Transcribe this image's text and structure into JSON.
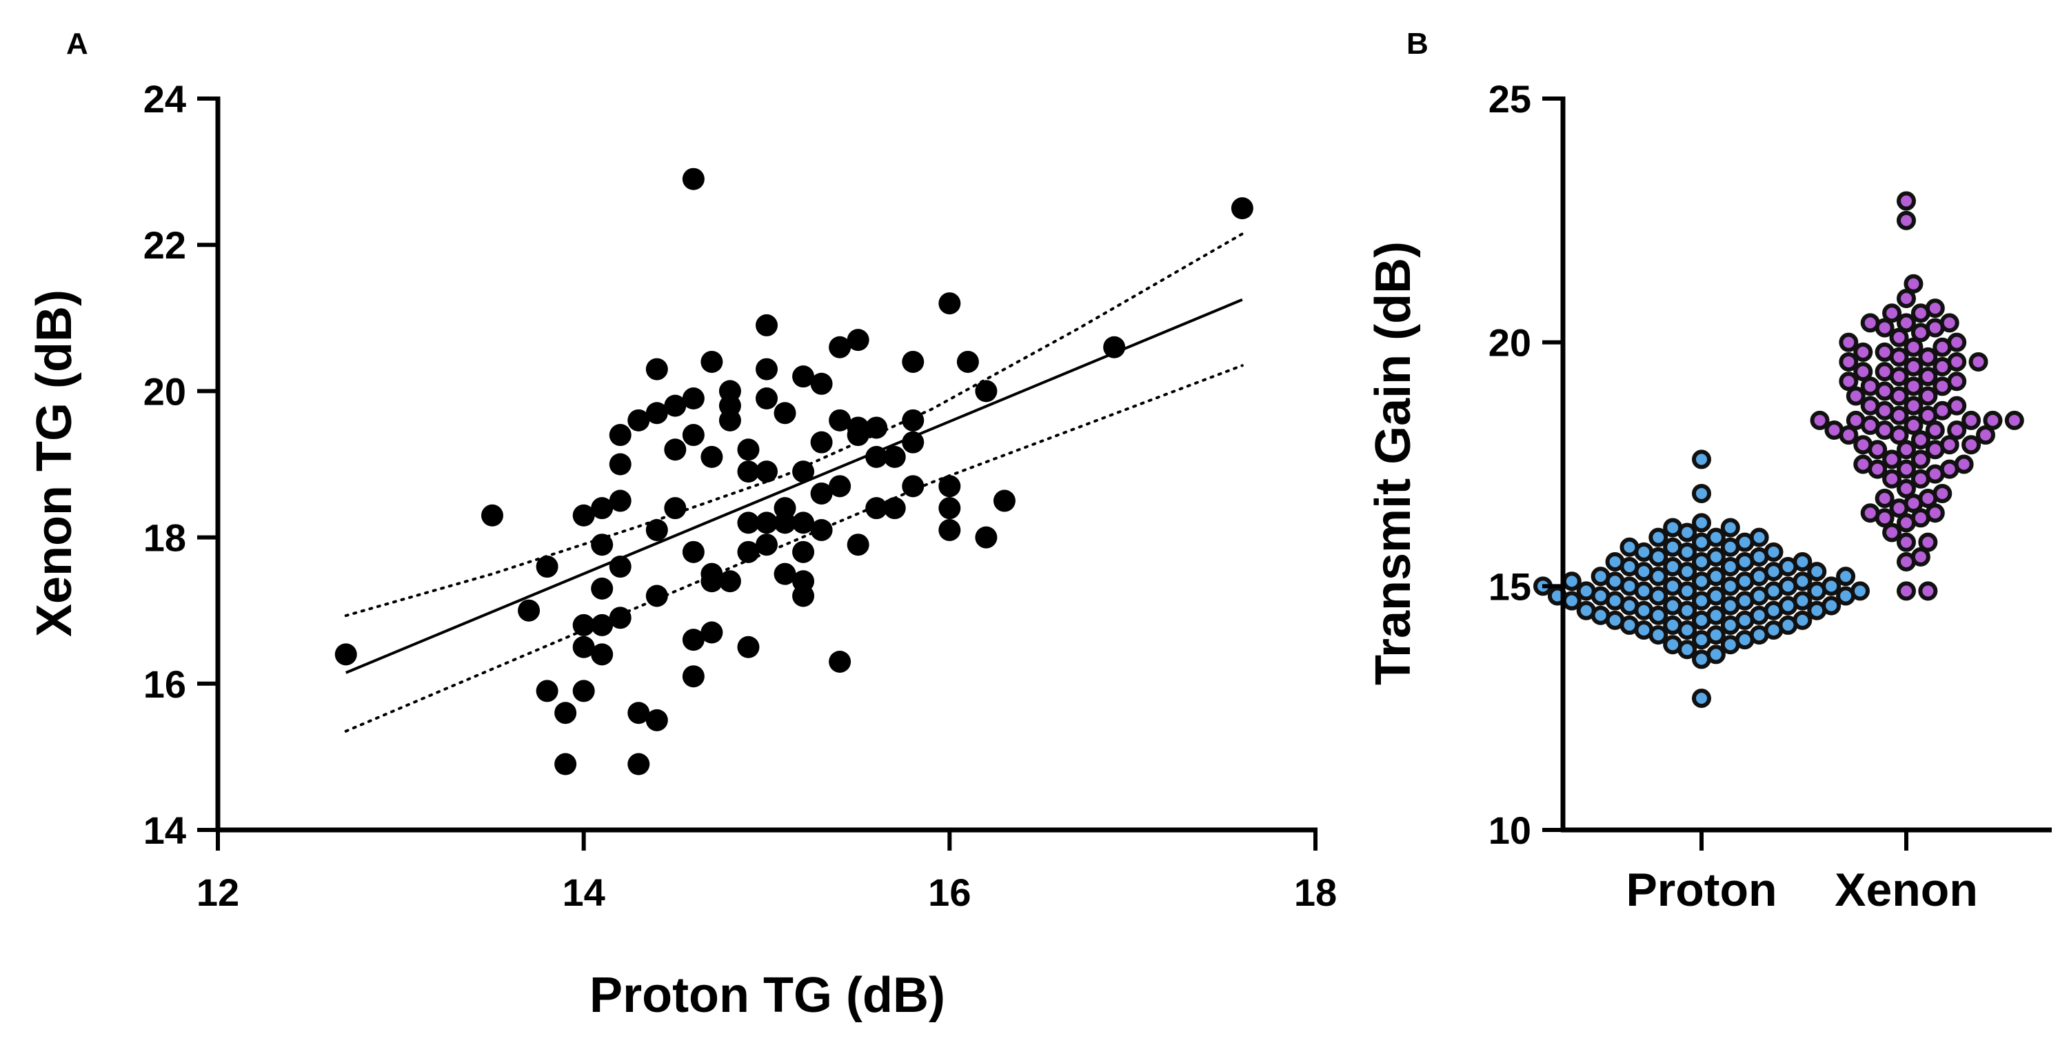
{
  "panels": {
    "a_label": "A",
    "b_label": "B"
  },
  "colors": {
    "axis": "#000000",
    "scatter_point": "#000000",
    "proton_fill": "#5aa7e6",
    "xenon_fill": "#b55ed6",
    "point_edge": "#111111"
  },
  "chart_data": [
    {
      "type": "scatter",
      "panel": "A",
      "title": "",
      "xlabel": "Proton TG (dB)",
      "ylabel": "Xenon TG (dB)",
      "xlim": [
        12,
        18
      ],
      "ylim": [
        14,
        24
      ],
      "xticks": [
        12,
        14,
        16,
        18
      ],
      "yticks": [
        14,
        16,
        18,
        20,
        22,
        24
      ],
      "xtick_labels": [
        "12",
        "14",
        "16",
        "18"
      ],
      "ytick_labels": [
        "14",
        "16",
        "18",
        "20",
        "22",
        "24"
      ],
      "points": [
        [
          12.7,
          16.4
        ],
        [
          13.5,
          18.3
        ],
        [
          13.7,
          17.0
        ],
        [
          13.8,
          17.6
        ],
        [
          13.8,
          15.9
        ],
        [
          13.9,
          15.6
        ],
        [
          13.9,
          14.9
        ],
        [
          14.0,
          18.3
        ],
        [
          14.0,
          16.8
        ],
        [
          14.0,
          16.5
        ],
        [
          14.0,
          15.9
        ],
        [
          14.1,
          18.4
        ],
        [
          14.1,
          17.9
        ],
        [
          14.1,
          17.3
        ],
        [
          14.1,
          16.8
        ],
        [
          14.1,
          16.4
        ],
        [
          14.2,
          19.4
        ],
        [
          14.2,
          19.0
        ],
        [
          14.2,
          18.5
        ],
        [
          14.2,
          17.6
        ],
        [
          14.2,
          16.9
        ],
        [
          14.3,
          19.6
        ],
        [
          14.3,
          15.6
        ],
        [
          14.3,
          14.9
        ],
        [
          14.4,
          20.3
        ],
        [
          14.4,
          19.7
        ],
        [
          14.4,
          18.1
        ],
        [
          14.4,
          17.2
        ],
        [
          14.4,
          15.5
        ],
        [
          14.5,
          19.8
        ],
        [
          14.5,
          19.2
        ],
        [
          14.5,
          18.4
        ],
        [
          14.6,
          22.9
        ],
        [
          14.6,
          19.9
        ],
        [
          14.6,
          19.4
        ],
        [
          14.6,
          17.8
        ],
        [
          14.6,
          16.6
        ],
        [
          14.6,
          16.1
        ],
        [
          14.7,
          20.4
        ],
        [
          14.7,
          19.1
        ],
        [
          14.7,
          17.5
        ],
        [
          14.7,
          17.4
        ],
        [
          14.7,
          16.7
        ],
        [
          14.8,
          20.0
        ],
        [
          14.8,
          19.8
        ],
        [
          14.8,
          19.6
        ],
        [
          14.8,
          17.4
        ],
        [
          14.9,
          19.2
        ],
        [
          14.9,
          18.9
        ],
        [
          14.9,
          18.2
        ],
        [
          14.9,
          17.8
        ],
        [
          14.9,
          16.5
        ],
        [
          15.0,
          20.9
        ],
        [
          15.0,
          20.3
        ],
        [
          15.0,
          19.9
        ],
        [
          15.0,
          18.9
        ],
        [
          15.0,
          18.2
        ],
        [
          15.0,
          17.9
        ],
        [
          15.1,
          19.7
        ],
        [
          15.1,
          18.4
        ],
        [
          15.1,
          18.2
        ],
        [
          15.1,
          17.5
        ],
        [
          15.2,
          18.9
        ],
        [
          15.2,
          18.2
        ],
        [
          15.2,
          17.8
        ],
        [
          15.2,
          17.4
        ],
        [
          15.2,
          17.2
        ],
        [
          15.2,
          20.2
        ],
        [
          15.3,
          20.1
        ],
        [
          15.3,
          19.3
        ],
        [
          15.3,
          18.6
        ],
        [
          15.3,
          18.1
        ],
        [
          15.4,
          20.6
        ],
        [
          15.4,
          19.6
        ],
        [
          15.4,
          18.7
        ],
        [
          15.4,
          16.3
        ],
        [
          15.5,
          20.7
        ],
        [
          15.5,
          19.5
        ],
        [
          15.5,
          19.4
        ],
        [
          15.5,
          17.9
        ],
        [
          15.6,
          19.5
        ],
        [
          15.6,
          19.1
        ],
        [
          15.6,
          18.4
        ],
        [
          15.7,
          19.1
        ],
        [
          15.7,
          18.4
        ],
        [
          15.8,
          20.4
        ],
        [
          15.8,
          19.6
        ],
        [
          15.8,
          19.3
        ],
        [
          15.8,
          18.7
        ],
        [
          16.0,
          21.2
        ],
        [
          16.0,
          18.7
        ],
        [
          16.0,
          18.4
        ],
        [
          16.0,
          18.1
        ],
        [
          16.1,
          20.4
        ],
        [
          16.2,
          20.0
        ],
        [
          16.2,
          18.0
        ],
        [
          16.3,
          18.5
        ],
        [
          16.9,
          20.6
        ],
        [
          17.6,
          22.5
        ]
      ],
      "regression": {
        "x": [
          12.7,
          17.6
        ],
        "y": [
          16.15,
          21.25
        ]
      },
      "ci_upper": {
        "x": [
          12.7,
          13.5,
          14.3,
          15.1,
          15.9,
          16.7,
          17.6
        ],
        "y": [
          16.93,
          17.5,
          18.15,
          18.85,
          19.75,
          20.85,
          22.15
        ]
      },
      "ci_lower": {
        "x": [
          12.7,
          13.5,
          14.3,
          15.1,
          15.9,
          16.7,
          17.6
        ],
        "y": [
          15.35,
          16.2,
          17.05,
          17.9,
          18.75,
          19.5,
          20.35
        ]
      }
    },
    {
      "type": "scatter",
      "subtype": "beeswarm",
      "panel": "B",
      "title": "",
      "xlabel": "",
      "ylabel": "Transmit Gain (dB)",
      "ylim": [
        10,
        25
      ],
      "yticks": [
        10,
        15,
        20,
        25
      ],
      "ytick_labels": [
        "10",
        "15",
        "20",
        "25"
      ],
      "categories": [
        "Proton",
        "Xenon"
      ],
      "series": [
        {
          "name": "Proton",
          "values": [
            12.7,
            13.5,
            13.6,
            13.7,
            13.8,
            13.8,
            13.9,
            13.9,
            14.0,
            14.0,
            14.0,
            14.1,
            14.1,
            14.1,
            14.2,
            14.2,
            14.2,
            14.2,
            14.3,
            14.3,
            14.3,
            14.3,
            14.4,
            14.4,
            14.4,
            14.4,
            14.5,
            14.5,
            14.5,
            14.5,
            14.5,
            14.6,
            14.6,
            14.6,
            14.6,
            14.6,
            14.7,
            14.7,
            14.7,
            14.7,
            14.7,
            14.8,
            14.8,
            14.8,
            14.8,
            14.8,
            14.8,
            14.9,
            14.9,
            14.9,
            14.9,
            14.9,
            14.9,
            15.0,
            15.0,
            15.0,
            15.0,
            15.0,
            15.0,
            15.1,
            15.1,
            15.1,
            15.1,
            15.1,
            15.2,
            15.2,
            15.2,
            15.2,
            15.2,
            15.3,
            15.3,
            15.3,
            15.3,
            15.4,
            15.4,
            15.4,
            15.4,
            15.5,
            15.5,
            15.5,
            15.5,
            15.6,
            15.6,
            15.6,
            15.7,
            15.7,
            15.7,
            15.8,
            15.8,
            15.8,
            15.9,
            15.9,
            16.0,
            16.0,
            16.0,
            16.1,
            16.2,
            16.2,
            16.3,
            16.9,
            17.6
          ]
        },
        {
          "name": "Xenon",
          "values": [
            14.9,
            14.9,
            15.5,
            15.6,
            15.9,
            15.9,
            16.1,
            16.3,
            16.4,
            16.4,
            16.5,
            16.5,
            16.6,
            16.7,
            16.8,
            16.8,
            16.9,
            17.0,
            17.2,
            17.2,
            17.3,
            17.4,
            17.4,
            17.4,
            17.5,
            17.5,
            17.6,
            17.6,
            17.8,
            17.8,
            17.8,
            17.9,
            17.9,
            17.9,
            18.0,
            18.1,
            18.1,
            18.1,
            18.2,
            18.2,
            18.2,
            18.2,
            18.3,
            18.3,
            18.4,
            18.4,
            18.4,
            18.4,
            18.4,
            18.5,
            18.5,
            18.6,
            18.6,
            18.7,
            18.7,
            18.7,
            18.9,
            18.9,
            18.9,
            19.0,
            19.1,
            19.1,
            19.1,
            19.2,
            19.2,
            19.3,
            19.3,
            19.4,
            19.4,
            19.5,
            19.5,
            19.6,
            19.6,
            19.6,
            19.7,
            19.7,
            19.8,
            19.8,
            19.9,
            19.9,
            20.0,
            20.0,
            20.1,
            20.2,
            20.3,
            20.3,
            20.4,
            20.4,
            20.4,
            20.6,
            20.6,
            20.7,
            20.9,
            21.2,
            22.5,
            22.9
          ]
        }
      ]
    }
  ]
}
